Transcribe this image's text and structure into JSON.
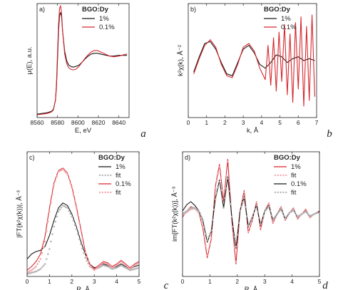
{
  "colors": {
    "black": "#1a1a1a",
    "red": "#d6282e",
    "fit_black": "#b5b5b5",
    "fit_red": "#f2a7ad"
  },
  "chart_data": [
    {
      "type": "line",
      "panel_label": "a)",
      "corner_label": "a",
      "xlabel": "E, eV",
      "ylabel": "μ(E), a.u.",
      "xlim": [
        8560,
        8650
      ],
      "ylim": [
        0,
        1.65
      ],
      "xticks": [
        8560,
        8580,
        8600,
        8620,
        8640
      ],
      "legend_title": "BGO:Dy",
      "legend_position": "top-right",
      "series": [
        {
          "name": "1%",
          "color": "black",
          "x": [
            8560,
            8565,
            8570,
            8574,
            8576,
            8578,
            8579,
            8580,
            8581,
            8582,
            8583,
            8584,
            8585,
            8587,
            8589,
            8591,
            8593,
            8595,
            8598,
            8601,
            8604,
            8607,
            8610,
            8613,
            8616,
            8619,
            8622,
            8625,
            8628,
            8631,
            8635,
            8640,
            8645,
            8648
          ],
          "y": [
            0.05,
            0.06,
            0.07,
            0.09,
            0.12,
            0.25,
            0.45,
            0.85,
            1.25,
            1.48,
            1.52,
            1.45,
            1.25,
            0.96,
            0.82,
            0.76,
            0.74,
            0.73,
            0.74,
            0.76,
            0.8,
            0.85,
            0.89,
            0.92,
            0.93,
            0.93,
            0.92,
            0.91,
            0.9,
            0.89,
            0.89,
            0.9,
            0.9,
            0.9
          ]
        },
        {
          "name": "0.1%",
          "color": "red",
          "x": [
            8560,
            8565,
            8570,
            8574,
            8576,
            8578,
            8579,
            8580,
            8581,
            8582,
            8583,
            8584,
            8585,
            8587,
            8589,
            8591,
            8593,
            8595,
            8598,
            8601,
            8604,
            8607,
            8610,
            8613,
            8616,
            8619,
            8622,
            8625,
            8628,
            8631,
            8635,
            8640,
            8645,
            8648
          ],
          "y": [
            0.04,
            0.05,
            0.06,
            0.08,
            0.11,
            0.26,
            0.5,
            0.95,
            1.35,
            1.58,
            1.62,
            1.5,
            1.25,
            0.92,
            0.78,
            0.72,
            0.7,
            0.69,
            0.7,
            0.74,
            0.8,
            0.86,
            0.91,
            0.95,
            0.97,
            0.97,
            0.95,
            0.93,
            0.91,
            0.89,
            0.88,
            0.89,
            0.91,
            0.92
          ]
        }
      ]
    },
    {
      "type": "line",
      "panel_label": "b)",
      "corner_label": "b",
      "xlabel": "k, Å",
      "ylabel": "k²χ(k), Å⁻²",
      "xlim": [
        0,
        7
      ],
      "ylim": [
        -3,
        3
      ],
      "xticks": [
        0,
        1,
        2,
        3,
        4,
        5,
        6,
        7
      ],
      "legend_title": "BGO:Dy",
      "legend_position": "top-right",
      "series": [
        {
          "name": "1%",
          "color": "black",
          "x": [
            0.3,
            0.6,
            0.9,
            1.2,
            1.5,
            1.8,
            2.1,
            2.4,
            2.7,
            3.0,
            3.3,
            3.6,
            3.9,
            4.2,
            4.5,
            4.8,
            5.1,
            5.4,
            5.7,
            6.0,
            6.3,
            6.6,
            6.9
          ],
          "y": [
            -0.6,
            0.2,
            0.9,
            1.0,
            0.6,
            -0.1,
            -0.7,
            -0.8,
            -0.1,
            0.6,
            0.8,
            0.4,
            -0.2,
            -0.4,
            -0.1,
            0.3,
            0.2,
            -0.1,
            0.1,
            0.2,
            0.0,
            0.1,
            0.0
          ]
        },
        {
          "name": "0.1%",
          "color": "red",
          "x": [
            0.3,
            0.6,
            0.9,
            1.2,
            1.5,
            1.8,
            2.1,
            2.4,
            2.7,
            3.0,
            3.3,
            3.6,
            3.9,
            4.2,
            4.35,
            4.5,
            4.65,
            4.8,
            4.95,
            5.1,
            5.25,
            5.4,
            5.55,
            5.7,
            5.85,
            6.0,
            6.15,
            6.3,
            6.45,
            6.6,
            6.75,
            6.9
          ],
          "y": [
            -0.7,
            0.1,
            0.8,
            1.1,
            0.7,
            -0.2,
            -0.8,
            -0.9,
            -0.2,
            0.7,
            0.9,
            0.5,
            -0.4,
            -1.0,
            0.8,
            -1.3,
            1.2,
            -1.6,
            1.5,
            -1.1,
            1.9,
            -1.8,
            1.4,
            -2.2,
            2.0,
            -1.5,
            2.3,
            -2.4,
            1.8,
            -2.1,
            2.4,
            -1.9
          ]
        }
      ]
    },
    {
      "type": "line",
      "panel_label": "c)",
      "corner_label": "c",
      "xlabel": "R, Å",
      "ylabel": "|FT(k²χ(k))|, Å⁻³",
      "xlim": [
        0,
        5
      ],
      "ylim": [
        0,
        1.0
      ],
      "xticks": [
        0,
        1,
        2,
        3,
        4,
        5
      ],
      "legend_title": "BGO:Dy",
      "legend_position": "top-right",
      "series": [
        {
          "name": "1%",
          "color": "black",
          "style": "line",
          "x": [
            0,
            0.2,
            0.4,
            0.6,
            0.8,
            1.0,
            1.2,
            1.4,
            1.6,
            1.8,
            2.0,
            2.2,
            2.4,
            2.6,
            2.8,
            3.0,
            3.2,
            3.4,
            3.6,
            3.8,
            4.0,
            4.2,
            4.4,
            4.6,
            4.8,
            5.0
          ],
          "y": [
            0.14,
            0.18,
            0.2,
            0.21,
            0.24,
            0.33,
            0.45,
            0.55,
            0.59,
            0.57,
            0.5,
            0.4,
            0.28,
            0.18,
            0.1,
            0.07,
            0.08,
            0.1,
            0.09,
            0.07,
            0.08,
            0.1,
            0.08,
            0.06,
            0.08,
            0.09
          ]
        },
        {
          "name": "fit",
          "color": "fit_black",
          "style": "dots",
          "x": [
            0,
            0.2,
            0.4,
            0.6,
            0.8,
            1.0,
            1.2,
            1.4,
            1.6,
            1.8,
            2.0,
            2.2,
            2.4,
            2.6,
            2.8,
            3.0,
            3.2,
            3.4,
            3.6,
            3.8,
            4.0,
            4.2,
            4.4,
            4.6,
            4.8,
            5.0
          ],
          "y": [
            0.02,
            0.03,
            0.04,
            0.06,
            0.1,
            0.22,
            0.4,
            0.52,
            0.57,
            0.55,
            0.48,
            0.38,
            0.26,
            0.15,
            0.08,
            0.06,
            0.07,
            0.09,
            0.08,
            0.06,
            0.07,
            0.09,
            0.07,
            0.05,
            0.06,
            0.07
          ]
        },
        {
          "name": "0.1%",
          "color": "red",
          "style": "line",
          "x": [
            0,
            0.2,
            0.4,
            0.6,
            0.8,
            1.0,
            1.2,
            1.4,
            1.6,
            1.8,
            2.0,
            2.2,
            2.4,
            2.6,
            2.8,
            3.0,
            3.2,
            3.4,
            3.6,
            3.8,
            4.0,
            4.2,
            4.4,
            4.6,
            4.8,
            5.0
          ],
          "y": [
            0.05,
            0.08,
            0.12,
            0.18,
            0.32,
            0.55,
            0.75,
            0.85,
            0.87,
            0.83,
            0.72,
            0.56,
            0.38,
            0.2,
            0.1,
            0.06,
            0.09,
            0.12,
            0.11,
            0.08,
            0.1,
            0.13,
            0.1,
            0.07,
            0.1,
            0.12
          ]
        },
        {
          "name": "fit",
          "color": "fit_red",
          "style": "dots",
          "x": [
            0,
            0.2,
            0.4,
            0.6,
            0.8,
            1.0,
            1.2,
            1.4,
            1.6,
            1.8,
            2.0,
            2.2,
            2.4,
            2.6,
            2.8,
            3.0,
            3.2,
            3.4,
            3.6,
            3.8,
            4.0,
            4.2,
            4.4,
            4.6,
            4.8,
            5.0
          ],
          "y": [
            0.03,
            0.05,
            0.08,
            0.14,
            0.28,
            0.52,
            0.73,
            0.84,
            0.86,
            0.82,
            0.71,
            0.55,
            0.37,
            0.19,
            0.09,
            0.05,
            0.08,
            0.11,
            0.1,
            0.07,
            0.09,
            0.12,
            0.09,
            0.06,
            0.09,
            0.11
          ]
        }
      ]
    },
    {
      "type": "line",
      "panel_label": "d)",
      "corner_label": "d",
      "xlabel": "R, Å",
      "ylabel": "im[FT(k²χ(k))], Å⁻³",
      "xlim": [
        0,
        5
      ],
      "ylim": [
        -1.0,
        1.0
      ],
      "xticks": [
        0,
        1,
        2,
        3,
        4,
        5
      ],
      "legend_title": "BGO:Dy",
      "legend_position": "top-right",
      "series": [
        {
          "name": "1%",
          "color": "red",
          "style": "line",
          "x": [
            0,
            0.15,
            0.3,
            0.45,
            0.6,
            0.75,
            0.9,
            1.05,
            1.2,
            1.35,
            1.5,
            1.65,
            1.8,
            1.95,
            2.1,
            2.25,
            2.4,
            2.55,
            2.7,
            2.85,
            3.0,
            3.15,
            3.3,
            3.45,
            3.6,
            3.75,
            3.9,
            4.05,
            4.2,
            4.35,
            4.5,
            4.65,
            4.8,
            5.0
          ],
          "y": [
            -0.05,
            0.05,
            0.12,
            0.1,
            0.02,
            -0.25,
            -0.7,
            -0.4,
            0.45,
            0.8,
            0.2,
            0.88,
            -0.1,
            -0.8,
            0.05,
            0.38,
            -0.3,
            -0.1,
            0.2,
            -0.25,
            0.05,
            0.18,
            -0.15,
            0.0,
            0.12,
            -0.1,
            0.02,
            0.1,
            -0.08,
            0.0,
            0.08,
            -0.06,
            0.0,
            0.05
          ]
        },
        {
          "name": "fit",
          "color": "fit_red",
          "style": "dots",
          "x": [
            0,
            0.15,
            0.3,
            0.45,
            0.6,
            0.75,
            0.9,
            1.05,
            1.2,
            1.35,
            1.5,
            1.65,
            1.8,
            1.95,
            2.1,
            2.25,
            2.4,
            2.55,
            2.7,
            2.85,
            3.0,
            3.15,
            3.3,
            3.45,
            3.6,
            3.75,
            3.9,
            4.05,
            4.2,
            4.35,
            4.5,
            4.65,
            4.8,
            5.0
          ],
          "y": [
            -0.02,
            0.03,
            0.08,
            0.09,
            0.02,
            -0.22,
            -0.66,
            -0.38,
            0.42,
            0.76,
            0.2,
            0.84,
            -0.08,
            -0.76,
            0.04,
            0.35,
            -0.28,
            -0.08,
            0.18,
            -0.22,
            0.04,
            0.16,
            -0.13,
            0.0,
            0.1,
            -0.08,
            0.02,
            0.08,
            -0.06,
            0.0,
            0.06,
            -0.05,
            0.0,
            0.04
          ]
        },
        {
          "name": "0.1%",
          "color": "black",
          "style": "line",
          "x": [
            0,
            0.15,
            0.3,
            0.45,
            0.6,
            0.75,
            0.9,
            1.05,
            1.2,
            1.35,
            1.5,
            1.65,
            1.8,
            1.95,
            2.1,
            2.25,
            2.4,
            2.55,
            2.7,
            2.85,
            3.0,
            3.15,
            3.3,
            3.45,
            3.6,
            3.75,
            3.9,
            4.05,
            4.2,
            4.35,
            4.5,
            4.65,
            4.8,
            5.0
          ],
          "y": [
            0.05,
            0.15,
            0.2,
            0.14,
            0.05,
            -0.12,
            -0.45,
            -0.28,
            0.25,
            0.55,
            0.1,
            0.6,
            -0.05,
            -0.55,
            0.05,
            0.28,
            -0.2,
            -0.05,
            0.15,
            -0.18,
            0.05,
            0.14,
            -0.1,
            0.0,
            0.09,
            -0.08,
            0.02,
            0.07,
            -0.05,
            0.0,
            0.05,
            -0.04,
            0.0,
            0.04
          ]
        },
        {
          "name": "fit",
          "color": "fit_black",
          "style": "dots",
          "x": [
            0,
            0.15,
            0.3,
            0.45,
            0.6,
            0.75,
            0.9,
            1.05,
            1.2,
            1.35,
            1.5,
            1.65,
            1.8,
            1.95,
            2.1,
            2.25,
            2.4,
            2.55,
            2.7,
            2.85,
            3.0,
            3.15,
            3.3,
            3.45,
            3.6,
            3.75,
            3.9,
            4.05,
            4.2,
            4.35,
            4.5,
            4.65,
            4.8,
            5.0
          ],
          "y": [
            0.0,
            0.05,
            0.1,
            0.1,
            0.04,
            -0.1,
            -0.42,
            -0.26,
            0.24,
            0.52,
            0.1,
            0.57,
            -0.04,
            -0.52,
            0.05,
            0.26,
            -0.18,
            -0.04,
            0.14,
            -0.16,
            0.04,
            0.12,
            -0.09,
            0.0,
            0.08,
            -0.07,
            0.02,
            0.06,
            -0.04,
            0.0,
            0.04,
            -0.03,
            0.0,
            0.03
          ]
        }
      ]
    }
  ]
}
